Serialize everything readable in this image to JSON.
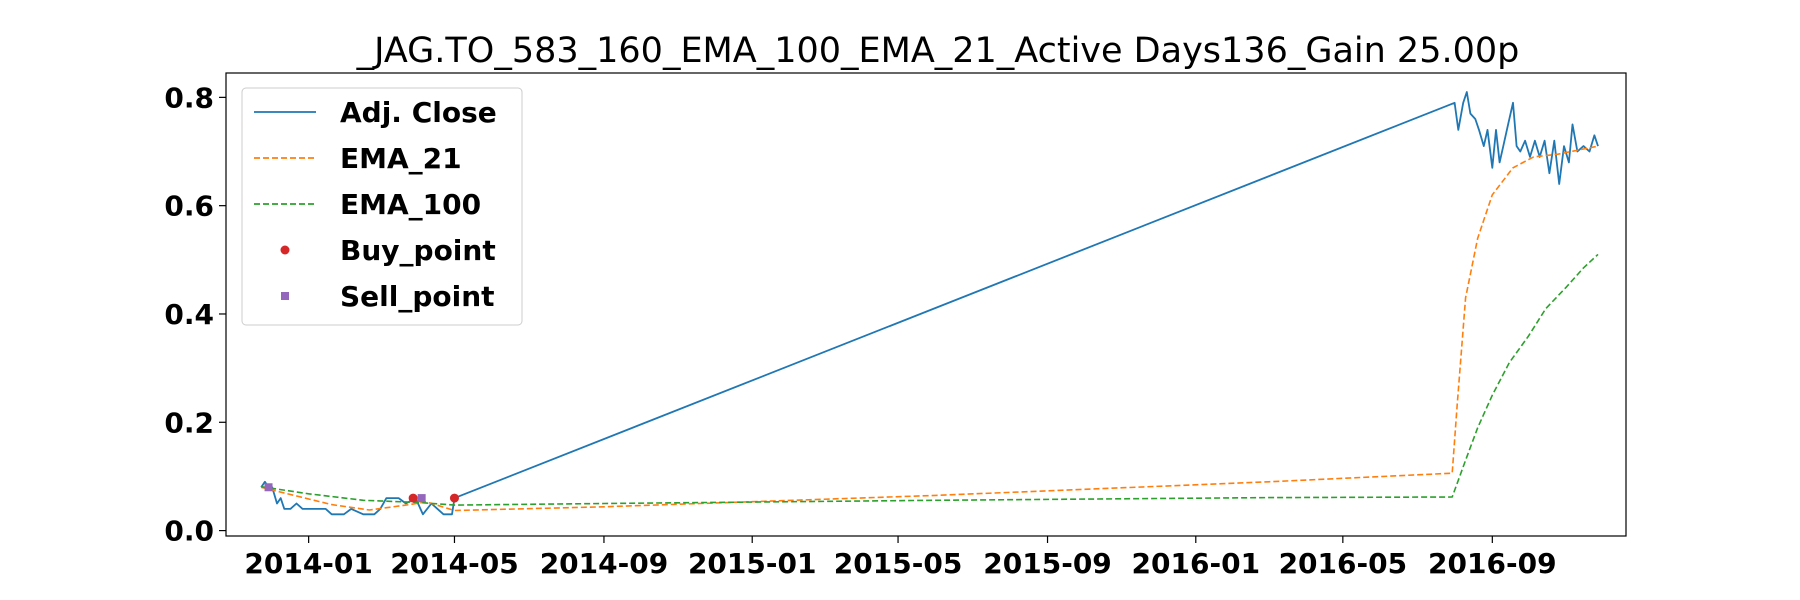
{
  "chart_data": {
    "type": "line",
    "title": "_JAG.TO_583_160_EMA_100_EMA_21_Active Days136_Gain  25.00p",
    "xlabel": "",
    "ylabel": "",
    "x_ticks": [
      "2014-01",
      "2014-05",
      "2014-09",
      "2015-01",
      "2015-05",
      "2015-09",
      "2016-01",
      "2016-05",
      "2016-09"
    ],
    "y_ticks": [
      "0.0",
      "0.2",
      "0.4",
      "0.6",
      "0.8"
    ],
    "xlim": [
      "2013-10-25",
      "2016-12-20"
    ],
    "ylim": [
      -0.01,
      0.845
    ],
    "grid": false,
    "legend_position": "upper left",
    "series": [
      {
        "name": "Adj. Close",
        "style": "solid",
        "color": "#1f77b4",
        "points": [
          [
            "2013-11-23",
            0.08
          ],
          [
            "2013-11-26",
            0.09
          ],
          [
            "2013-11-29",
            0.08
          ],
          [
            "2013-12-02",
            0.08
          ],
          [
            "2013-12-06",
            0.05
          ],
          [
            "2013-12-09",
            0.06
          ],
          [
            "2013-12-12",
            0.04
          ],
          [
            "2013-12-17",
            0.04
          ],
          [
            "2013-12-22",
            0.05
          ],
          [
            "2013-12-27",
            0.04
          ],
          [
            "2014-01-05",
            0.04
          ],
          [
            "2014-01-15",
            0.04
          ],
          [
            "2014-01-20",
            0.03
          ],
          [
            "2014-01-30",
            0.03
          ],
          [
            "2014-02-05",
            0.04
          ],
          [
            "2014-02-15",
            0.03
          ],
          [
            "2014-02-24",
            0.03
          ],
          [
            "2014-03-01",
            0.04
          ],
          [
            "2014-03-06",
            0.06
          ],
          [
            "2014-03-16",
            0.06
          ],
          [
            "2014-03-22",
            0.05
          ],
          [
            "2014-03-30",
            0.06
          ],
          [
            "2014-04-05",
            0.03
          ],
          [
            "2014-04-12",
            0.05
          ],
          [
            "2014-04-17",
            0.04
          ],
          [
            "2014-04-22",
            0.03
          ],
          [
            "2014-04-29",
            0.03
          ],
          [
            "2014-05-01",
            0.06
          ],
          [
            "2016-08-01",
            0.79
          ],
          [
            "2016-08-04",
            0.74
          ],
          [
            "2016-08-08",
            0.79
          ],
          [
            "2016-08-11",
            0.81
          ],
          [
            "2016-08-14",
            0.77
          ],
          [
            "2016-08-18",
            0.76
          ],
          [
            "2016-08-21",
            0.74
          ],
          [
            "2016-08-25",
            0.71
          ],
          [
            "2016-08-28",
            0.74
          ],
          [
            "2016-09-01",
            0.67
          ],
          [
            "2016-09-04",
            0.74
          ],
          [
            "2016-09-07",
            0.68
          ],
          [
            "2016-09-10",
            0.71
          ],
          [
            "2016-09-14",
            0.75
          ],
          [
            "2016-09-18",
            0.79
          ],
          [
            "2016-09-21",
            0.71
          ],
          [
            "2016-09-24",
            0.7
          ],
          [
            "2016-09-28",
            0.72
          ],
          [
            "2016-10-02",
            0.69
          ],
          [
            "2016-10-06",
            0.72
          ],
          [
            "2016-10-10",
            0.69
          ],
          [
            "2016-10-14",
            0.72
          ],
          [
            "2016-10-18",
            0.66
          ],
          [
            "2016-10-22",
            0.72
          ],
          [
            "2016-10-26",
            0.64
          ],
          [
            "2016-10-30",
            0.71
          ],
          [
            "2016-11-03",
            0.68
          ],
          [
            "2016-11-06",
            0.75
          ],
          [
            "2016-11-10",
            0.7
          ],
          [
            "2016-11-15",
            0.71
          ],
          [
            "2016-11-20",
            0.7
          ],
          [
            "2016-11-24",
            0.73
          ],
          [
            "2016-11-27",
            0.71
          ]
        ]
      },
      {
        "name": "EMA_21",
        "style": "dashed",
        "color": "#ff7f0e",
        "points": [
          [
            "2013-11-23",
            0.08
          ],
          [
            "2013-12-20",
            0.065
          ],
          [
            "2014-01-20",
            0.048
          ],
          [
            "2014-02-20",
            0.038
          ],
          [
            "2014-03-25",
            0.048
          ],
          [
            "2014-04-08",
            0.053
          ],
          [
            "2014-05-01",
            0.037
          ],
          [
            "2014-09-01",
            0.044
          ],
          [
            "2015-06-01",
            0.065
          ],
          [
            "2016-03-01",
            0.09
          ],
          [
            "2016-07-30",
            0.106
          ],
          [
            "2016-08-03",
            0.23
          ],
          [
            "2016-08-10",
            0.43
          ],
          [
            "2016-08-20",
            0.54
          ],
          [
            "2016-09-01",
            0.62
          ],
          [
            "2016-09-18",
            0.67
          ],
          [
            "2016-10-05",
            0.69
          ],
          [
            "2016-10-25",
            0.695
          ],
          [
            "2016-11-27",
            0.71
          ]
        ]
      },
      {
        "name": "EMA_100",
        "style": "dashed",
        "color": "#2ca02c",
        "points": [
          [
            "2013-11-23",
            0.081
          ],
          [
            "2014-01-01",
            0.068
          ],
          [
            "2014-02-15",
            0.056
          ],
          [
            "2014-04-01",
            0.052
          ],
          [
            "2014-05-01",
            0.047
          ],
          [
            "2014-09-01",
            0.05
          ],
          [
            "2015-06-01",
            0.056
          ],
          [
            "2016-03-01",
            0.061
          ],
          [
            "2016-07-30",
            0.062
          ],
          [
            "2016-08-10",
            0.13
          ],
          [
            "2016-08-20",
            0.19
          ],
          [
            "2016-09-01",
            0.25
          ],
          [
            "2016-09-15",
            0.31
          ],
          [
            "2016-10-01",
            0.36
          ],
          [
            "2016-10-15",
            0.41
          ],
          [
            "2016-11-01",
            0.45
          ],
          [
            "2016-11-15",
            0.485
          ],
          [
            "2016-11-27",
            0.51
          ]
        ]
      },
      {
        "name": "Buy_point",
        "style": "marker-circle",
        "color": "#d62728",
        "points": [
          [
            "2014-03-28",
            0.06
          ],
          [
            "2014-05-01",
            0.06
          ]
        ]
      },
      {
        "name": "Sell_point",
        "style": "marker-square",
        "color": "#9467bd",
        "points": [
          [
            "2013-11-29",
            0.08
          ],
          [
            "2014-04-04",
            0.06
          ]
        ]
      }
    ]
  }
}
